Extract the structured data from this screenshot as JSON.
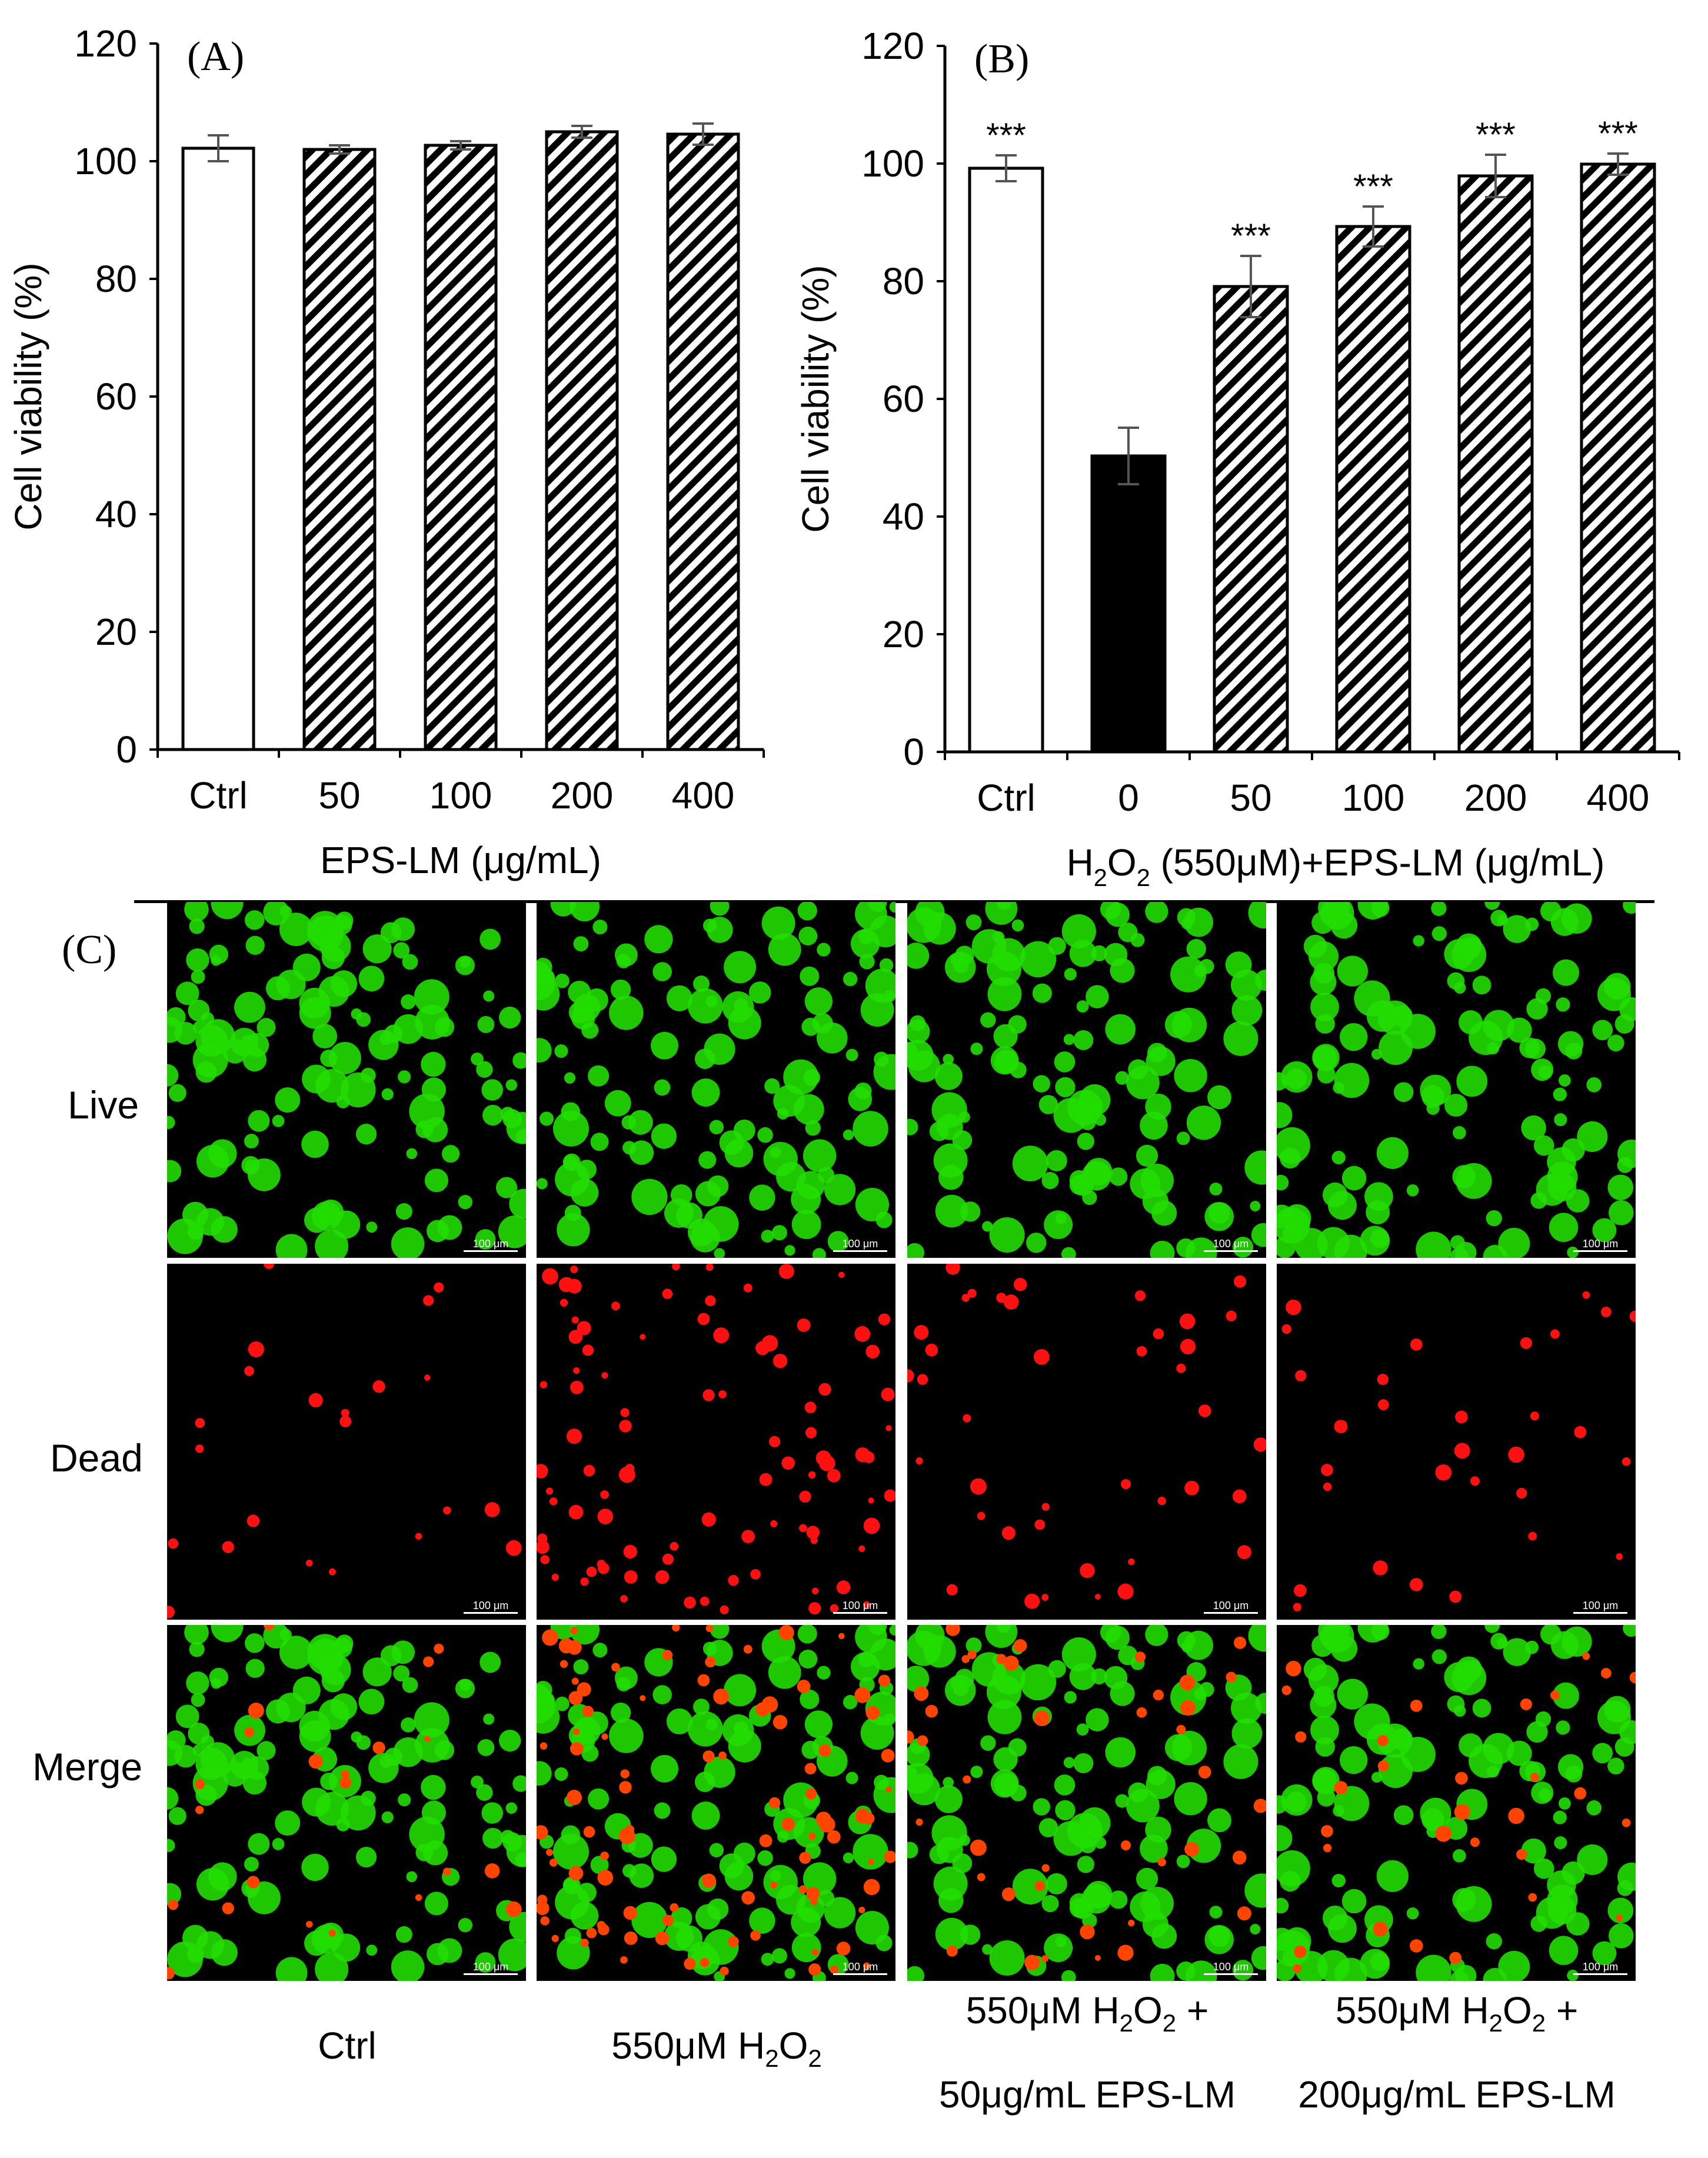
{
  "chart_data": [
    {
      "type": "bar",
      "panel_label": "(A)",
      "categories": [
        "Ctrl",
        "50",
        "100",
        "200",
        "400"
      ],
      "values": [
        102.2,
        102.0,
        102.7,
        105.0,
        104.6
      ],
      "errors": [
        2.2,
        0.7,
        0.7,
        1.0,
        1.8
      ],
      "fills": [
        "white",
        "hatch",
        "hatch",
        "hatch",
        "hatch"
      ],
      "ylabel": "Cell viability (%)",
      "xlabel": "EPS-LM (μg/mL)",
      "ylim": [
        0,
        120
      ],
      "yticks": [
        0,
        20,
        40,
        60,
        80,
        100,
        120
      ],
      "significance": [
        "",
        "",
        "",
        "",
        ""
      ],
      "grid": false
    },
    {
      "type": "bar",
      "panel_label": "(B)",
      "categories": [
        "Ctrl",
        "0",
        "50",
        "100",
        "200",
        "400"
      ],
      "values": [
        99.2,
        50.3,
        79.1,
        89.3,
        97.9,
        99.9
      ],
      "errors": [
        2.2,
        4.8,
        5.2,
        3.4,
        3.6,
        1.8
      ],
      "fills": [
        "white",
        "black",
        "hatch",
        "hatch",
        "hatch",
        "hatch"
      ],
      "ylabel": "Cell viability (%)",
      "xlabel_parts": [
        "H",
        "2",
        "O",
        "2",
        " (550μM)+EPS-LM (μg/mL)"
      ],
      "ylim": [
        0,
        120
      ],
      "yticks": [
        0,
        20,
        40,
        60,
        80,
        100,
        120
      ],
      "significance": [
        "***",
        "",
        "***",
        "***",
        "***",
        "***"
      ],
      "grid": false
    }
  ],
  "panel_c": {
    "label": "(C)",
    "rows": [
      "Live",
      "Dead",
      "Merge"
    ],
    "scale_bar": "100 μm",
    "columns": [
      {
        "line1": "Ctrl",
        "line2": ""
      },
      {
        "line1_parts": [
          "550μM H",
          "2",
          "O",
          "2",
          ""
        ],
        "line2": ""
      },
      {
        "line1_parts": [
          "550μM H",
          "2",
          "O",
          "2",
          " +"
        ],
        "line2": "50μg/mL EPS-LM"
      },
      {
        "line1_parts": [
          "550μM H",
          "2",
          "O",
          "2",
          " +"
        ],
        "line2": "200μg/mL EPS-LM"
      }
    ],
    "dead_counts": [
      22,
      95,
      40,
      30
    ],
    "live_color": "#22dd00",
    "dead_color": "#ff1010"
  }
}
